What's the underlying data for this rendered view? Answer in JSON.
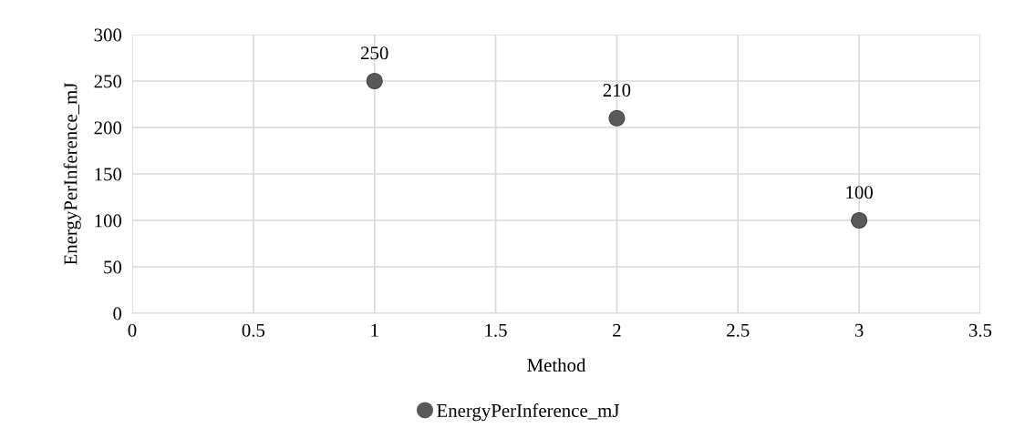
{
  "chart_data": {
    "type": "scatter",
    "xlabel": "Method",
    "ylabel": "EnergyPerInference_mJ",
    "x": [
      1,
      2,
      3
    ],
    "series": [
      {
        "name": "EnergyPerInference_mJ",
        "color": "#595959",
        "values": [
          250,
          210,
          100
        ]
      }
    ],
    "xlim": [
      0,
      3.5
    ],
    "xticks": [
      0,
      {
        "value": 0.5,
        "label": "0.5"
      },
      1,
      {
        "value": 1.5,
        "label": "1.5"
      },
      2,
      {
        "value": 2.5,
        "label": "2.5"
      },
      3,
      {
        "value": 3.5,
        "label": "3.5"
      }
    ],
    "ylim": [
      0,
      300
    ],
    "yticks": [
      0,
      50,
      100,
      150,
      200,
      250,
      300
    ],
    "grid": true,
    "legend": "bottom",
    "marker": "circle",
    "data_labels": true
  }
}
